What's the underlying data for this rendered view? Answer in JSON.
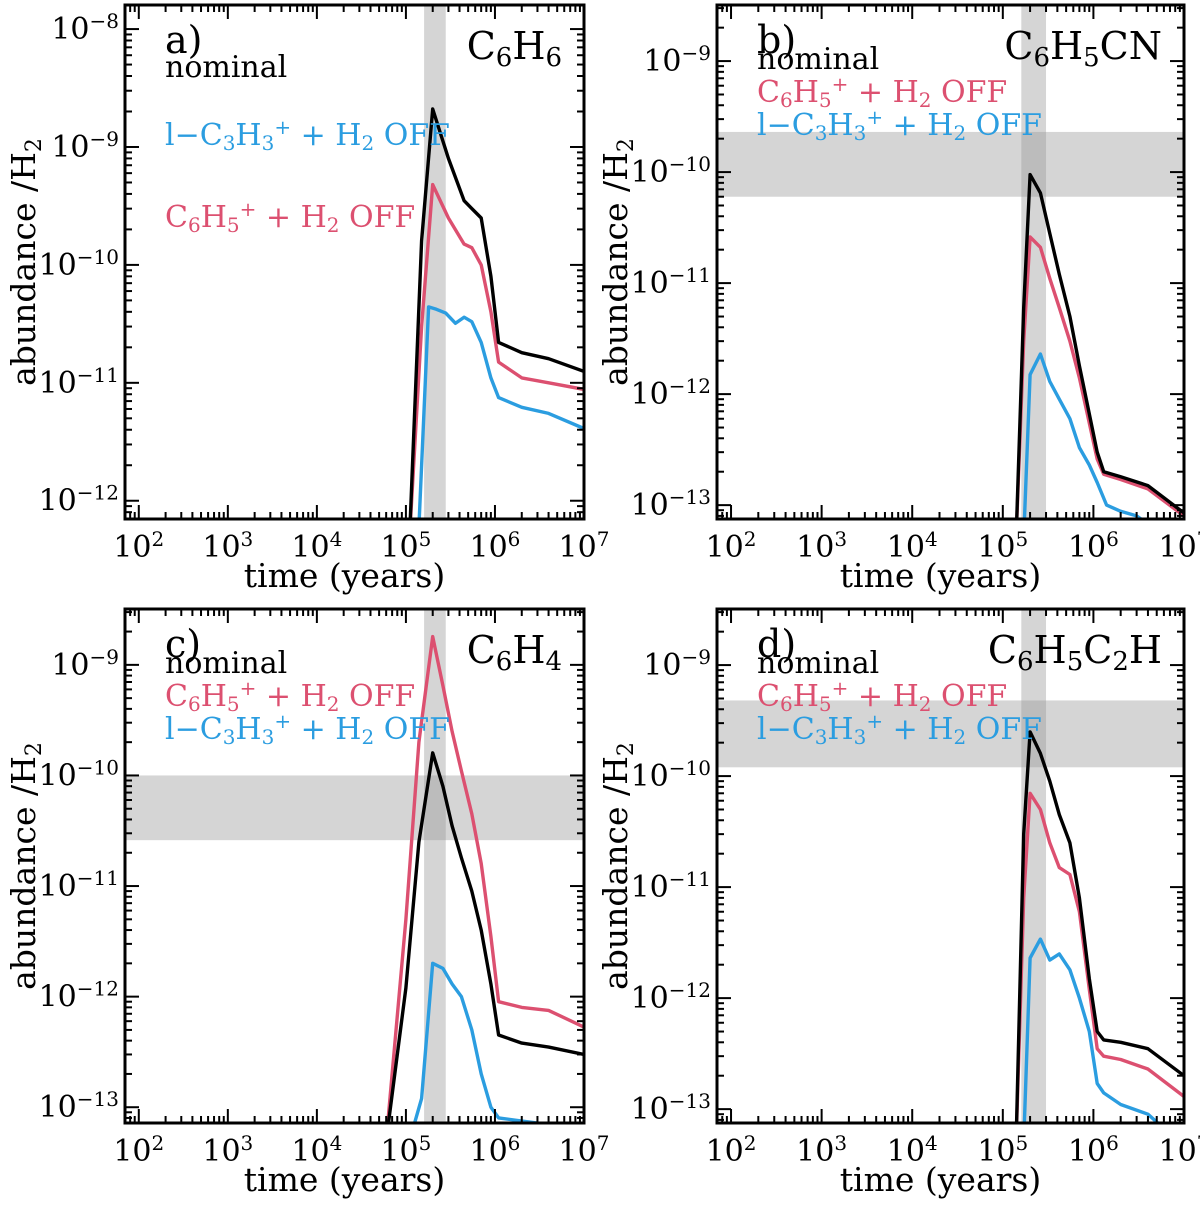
{
  "chart_data": [
    {
      "type": "line",
      "panel_label": "a)",
      "species": {
        "main": "C",
        "parts": [
          [
            "C",
            ""
          ],
          [
            "6",
            "sub"
          ],
          [
            "H",
            ""
          ],
          [
            "6",
            "sub"
          ]
        ]
      },
      "xlabel": "time (years)",
      "ylabel": {
        "text": "abundance /H",
        "sub": "2"
      },
      "x_scale": "log",
      "y_scale": "log",
      "xlim": [
        70,
        10000000
      ],
      "ylim": [
        7e-13,
        1.6e-08
      ],
      "x_ticks": [
        100,
        1000,
        10000,
        100000,
        1000000,
        10000000
      ],
      "x_tick_labels": [
        [
          "10",
          "2"
        ],
        [
          "10",
          "3"
        ],
        [
          "10",
          "4"
        ],
        [
          "10",
          "5"
        ],
        [
          "10",
          "6"
        ],
        [
          "10",
          "7"
        ]
      ],
      "y_ticks": [
        1e-12,
        1e-11,
        1e-10,
        1e-09,
        1e-08
      ],
      "y_tick_labels": [
        [
          "10",
          "−12"
        ],
        [
          "10",
          "−11"
        ],
        [
          "10",
          "−10"
        ],
        [
          "10",
          "−9"
        ],
        [
          "10",
          "−8"
        ]
      ],
      "vband": [
        160000,
        280000
      ],
      "hband": null,
      "legend": [
        {
          "label": "nominal",
          "color": "#000000"
        },
        {
          "label": "l−C3H3+ + H2 OFF",
          "color": "#2b9de0"
        },
        {
          "label": "C6H5+ + H2 OFF",
          "color": "#dc5070"
        }
      ],
      "legend_layout": "spread",
      "series": [
        {
          "color": "#000000",
          "x": [
            110000,
            150000,
            200000,
            300000,
            450000,
            550000,
            700000,
            900000,
            1100000,
            2000000,
            4000000,
            10000000
          ],
          "y": [
            5e-13,
            1.6e-10,
            2.1e-09,
            8e-10,
            3.5e-10,
            3e-10,
            2.5e-10,
            8e-11,
            2.2e-11,
            1.8e-11,
            1.6e-11,
            1.25e-11
          ]
        },
        {
          "color": "#dc5070",
          "x": [
            110000,
            150000,
            200000,
            300000,
            450000,
            550000,
            700000,
            900000,
            1100000,
            2000000,
            4000000,
            10000000
          ],
          "y": [
            5e-13,
            3e-11,
            4.8e-10,
            2.5e-10,
            1.5e-10,
            1.4e-10,
            1e-10,
            4e-11,
            1.5e-11,
            1.1e-11,
            1e-11,
            8.8e-12
          ]
        },
        {
          "color": "#2b9de0",
          "x": [
            140000,
            180000,
            220000,
            280000,
            360000,
            450000,
            550000,
            700000,
            900000,
            1100000,
            2000000,
            4000000,
            10000000
          ],
          "y": [
            6e-13,
            4.4e-11,
            4.2e-11,
            3.9e-11,
            3.2e-11,
            3.6e-11,
            3.3e-11,
            2.2e-11,
            1.1e-11,
            7.5e-12,
            6.2e-12,
            5.5e-12,
            4.1e-12
          ]
        }
      ]
    },
    {
      "type": "line",
      "panel_label": "b)",
      "species": {
        "main": "C",
        "parts": [
          [
            "C",
            ""
          ],
          [
            "6",
            "sub"
          ],
          [
            "H",
            ""
          ],
          [
            "5",
            "sub"
          ],
          [
            "CN",
            ""
          ]
        ]
      },
      "xlabel": "time (years)",
      "ylabel": {
        "text": "abundance /H",
        "sub": "2"
      },
      "x_scale": "log",
      "y_scale": "log",
      "xlim": [
        70,
        10000000
      ],
      "ylim": [
        7.5e-14,
        3.2e-09
      ],
      "x_ticks": [
        100,
        1000,
        10000,
        100000,
        1000000,
        10000000
      ],
      "x_tick_labels": [
        [
          "10",
          "2"
        ],
        [
          "10",
          "3"
        ],
        [
          "10",
          "4"
        ],
        [
          "10",
          "5"
        ],
        [
          "10",
          "6"
        ],
        [
          "10",
          "7"
        ]
      ],
      "y_ticks": [
        1e-13,
        1e-12,
        1e-11,
        1e-10,
        1e-09
      ],
      "y_tick_labels": [
        [
          "10",
          "−13"
        ],
        [
          "10",
          "−12"
        ],
        [
          "10",
          "−11"
        ],
        [
          "10",
          "−10"
        ],
        [
          "10",
          "−9"
        ]
      ],
      "vband": [
        160000,
        300000
      ],
      "hband": [
        6e-11,
        2.3e-10
      ],
      "legend": [
        {
          "label": "nominal",
          "color": "#000000"
        },
        {
          "label": "C6H5+ + H2 OFF",
          "color": "#dc5070"
        },
        {
          "label": "l−C3H3+ + H2 OFF",
          "color": "#2b9de0"
        }
      ],
      "legend_layout": "compact",
      "series": [
        {
          "color": "#000000",
          "x": [
            140000,
            170000,
            200000,
            260000,
            330000,
            420000,
            550000,
            700000,
            1100000,
            1300000,
            2000000,
            4000000,
            10000000
          ],
          "y": [
            5e-14,
            6e-12,
            9.5e-11,
            6.5e-11,
            2.8e-11,
            1.2e-11,
            5e-12,
            1.8e-12,
            3e-13,
            2e-13,
            1.8e-13,
            1.5e-13,
            8.5e-14
          ]
        },
        {
          "color": "#dc5070",
          "x": [
            140000,
            170000,
            200000,
            260000,
            330000,
            420000,
            550000,
            700000,
            1100000,
            1300000,
            2000000,
            4000000,
            10000000
          ],
          "y": [
            5e-14,
            3e-12,
            2.6e-11,
            2.1e-11,
            1.1e-11,
            6e-12,
            3e-12,
            1.4e-12,
            2.6e-13,
            1.9e-13,
            1.7e-13,
            1.4e-13,
            8e-14
          ]
        },
        {
          "color": "#2b9de0",
          "x": [
            170000,
            200000,
            260000,
            330000,
            420000,
            550000,
            700000,
            900000,
            1100000,
            1400000,
            2000000,
            3000000,
            5000000
          ],
          "y": [
            5e-14,
            1.5e-12,
            2.3e-12,
            1.3e-12,
            9e-13,
            6e-13,
            3.3e-13,
            2.3e-13,
            1.6e-13,
            1e-13,
            8.8e-14,
            8e-14,
            6e-14
          ]
        }
      ]
    },
    {
      "type": "line",
      "panel_label": "c)",
      "species": {
        "main": "C",
        "parts": [
          [
            "C",
            ""
          ],
          [
            "6",
            "sub"
          ],
          [
            "H",
            ""
          ],
          [
            "4",
            "sub"
          ]
        ]
      },
      "xlabel": "time (years)",
      "ylabel": {
        "text": "abundance /H",
        "sub": "2"
      },
      "x_scale": "log",
      "y_scale": "log",
      "xlim": [
        70,
        10000000
      ],
      "ylim": [
        7.2e-14,
        3.2e-09
      ],
      "x_ticks": [
        100,
        1000,
        10000,
        100000,
        1000000,
        10000000
      ],
      "x_tick_labels": [
        [
          "10",
          "2"
        ],
        [
          "10",
          "3"
        ],
        [
          "10",
          "4"
        ],
        [
          "10",
          "5"
        ],
        [
          "10",
          "6"
        ],
        [
          "10",
          "7"
        ]
      ],
      "y_ticks": [
        1e-13,
        1e-12,
        1e-11,
        1e-10,
        1e-09
      ],
      "y_tick_labels": [
        [
          "10",
          "−13"
        ],
        [
          "10",
          "−12"
        ],
        [
          "10",
          "−11"
        ],
        [
          "10",
          "−10"
        ],
        [
          "10",
          "−9"
        ]
      ],
      "vband": [
        160000,
        280000
      ],
      "hband": [
        2.6e-11,
        1e-10
      ],
      "legend": [
        {
          "label": "nominal",
          "color": "#000000"
        },
        {
          "label": "C6H5+ + H2 OFF",
          "color": "#dc5070"
        },
        {
          "label": "l−C3H3+ + H2 OFF",
          "color": "#2b9de0"
        }
      ],
      "legend_layout": "compact",
      "series": [
        {
          "color": "#000000",
          "x": [
            60000,
            100000,
            140000,
            200000,
            260000,
            330000,
            420000,
            550000,
            700000,
            900000,
            1100000,
            2000000,
            4000000,
            10000000
          ],
          "y": [
            5e-14,
            1.2e-12,
            2.5e-11,
            1.6e-10,
            8e-11,
            3.5e-11,
            1.8e-11,
            9e-12,
            4e-12,
            1.3e-12,
            4.5e-13,
            3.8e-13,
            3.5e-13,
            3e-13
          ]
        },
        {
          "color": "#dc5070",
          "x": [
            60000,
            100000,
            140000,
            200000,
            260000,
            330000,
            420000,
            550000,
            700000,
            900000,
            1100000,
            2000000,
            4000000,
            10000000
          ],
          "y": [
            5e-14,
            5e-12,
            2e-10,
            1.8e-09,
            6.5e-10,
            2.5e-10,
            1.1e-10,
            4.5e-11,
            1.6e-11,
            3.5e-12,
            9e-13,
            8e-13,
            7.5e-13,
            5.3e-13
          ]
        },
        {
          "color": "#2b9de0",
          "x": [
            110000,
            150000,
            200000,
            260000,
            330000,
            420000,
            550000,
            700000,
            900000,
            1100000,
            2000000,
            4000000,
            10000000
          ],
          "y": [
            5e-14,
            1.2e-13,
            2e-12,
            1.8e-12,
            1.3e-12,
            1e-12,
            5e-13,
            2e-13,
            1e-13,
            8e-14,
            7.5e-14,
            7e-14,
            6e-14
          ]
        }
      ]
    },
    {
      "type": "line",
      "panel_label": "d)",
      "species": {
        "main": "C",
        "parts": [
          [
            "C",
            ""
          ],
          [
            "6",
            "sub"
          ],
          [
            "H",
            ""
          ],
          [
            "5",
            "sub"
          ],
          [
            "C",
            ""
          ],
          [
            "2",
            "sub"
          ],
          [
            "H",
            ""
          ]
        ]
      },
      "xlabel": "time (years)",
      "ylabel": {
        "text": "abundance /H",
        "sub": "2"
      },
      "x_scale": "log",
      "y_scale": "log",
      "xlim": [
        70,
        10000000
      ],
      "ylim": [
        7.5e-14,
        3.2e-09
      ],
      "x_ticks": [
        100,
        1000,
        10000,
        100000,
        1000000,
        10000000
      ],
      "x_tick_labels": [
        [
          "10",
          "2"
        ],
        [
          "10",
          "3"
        ],
        [
          "10",
          "4"
        ],
        [
          "10",
          "5"
        ],
        [
          "10",
          "6"
        ],
        [
          "10",
          "7"
        ]
      ],
      "y_ticks": [
        1e-13,
        1e-12,
        1e-11,
        1e-10,
        1e-09
      ],
      "y_tick_labels": [
        [
          "10",
          "−13"
        ],
        [
          "10",
          "−12"
        ],
        [
          "10",
          "−11"
        ],
        [
          "10",
          "−10"
        ],
        [
          "10",
          "−9"
        ]
      ],
      "vband": [
        160000,
        300000
      ],
      "hband": [
        1.2e-10,
        4.8e-10
      ],
      "legend": [
        {
          "label": "nominal",
          "color": "#000000"
        },
        {
          "label": "C6H5+ + H2 OFF",
          "color": "#dc5070"
        },
        {
          "label": "l−C3H3+ + H2 OFF",
          "color": "#2b9de0"
        }
      ],
      "legend_layout": "compact",
      "series": [
        {
          "color": "#000000",
          "x": [
            140000,
            170000,
            200000,
            260000,
            330000,
            420000,
            550000,
            700000,
            900000,
            1100000,
            1300000,
            2000000,
            4000000,
            10000000
          ],
          "y": [
            5e-14,
            3e-11,
            2.5e-10,
            1.6e-10,
            9e-11,
            4.5e-11,
            2.5e-11,
            8e-12,
            1.5e-12,
            5e-13,
            4.2e-13,
            4e-13,
            3.5e-13,
            2e-13
          ]
        },
        {
          "color": "#dc5070",
          "x": [
            140000,
            170000,
            200000,
            260000,
            330000,
            420000,
            550000,
            700000,
            900000,
            1100000,
            1300000,
            2000000,
            4000000,
            10000000
          ],
          "y": [
            5e-14,
            8e-12,
            7e-11,
            5e-11,
            2.5e-11,
            1.5e-11,
            1.3e-11,
            6e-12,
            1.2e-12,
            3.5e-13,
            3e-13,
            2.8e-13,
            2.3e-13,
            1.3e-13
          ]
        },
        {
          "color": "#2b9de0",
          "x": [
            170000,
            200000,
            260000,
            330000,
            420000,
            550000,
            700000,
            900000,
            1100000,
            1300000,
            2000000,
            4000000,
            7000000
          ],
          "y": [
            5e-14,
            2.3e-12,
            3.4e-12,
            2.2e-12,
            2.5e-12,
            1.8e-12,
            1e-12,
            5e-13,
            1.7e-13,
            1.4e-13,
            1.1e-13,
            9e-14,
            6e-14
          ]
        }
      ]
    }
  ]
}
